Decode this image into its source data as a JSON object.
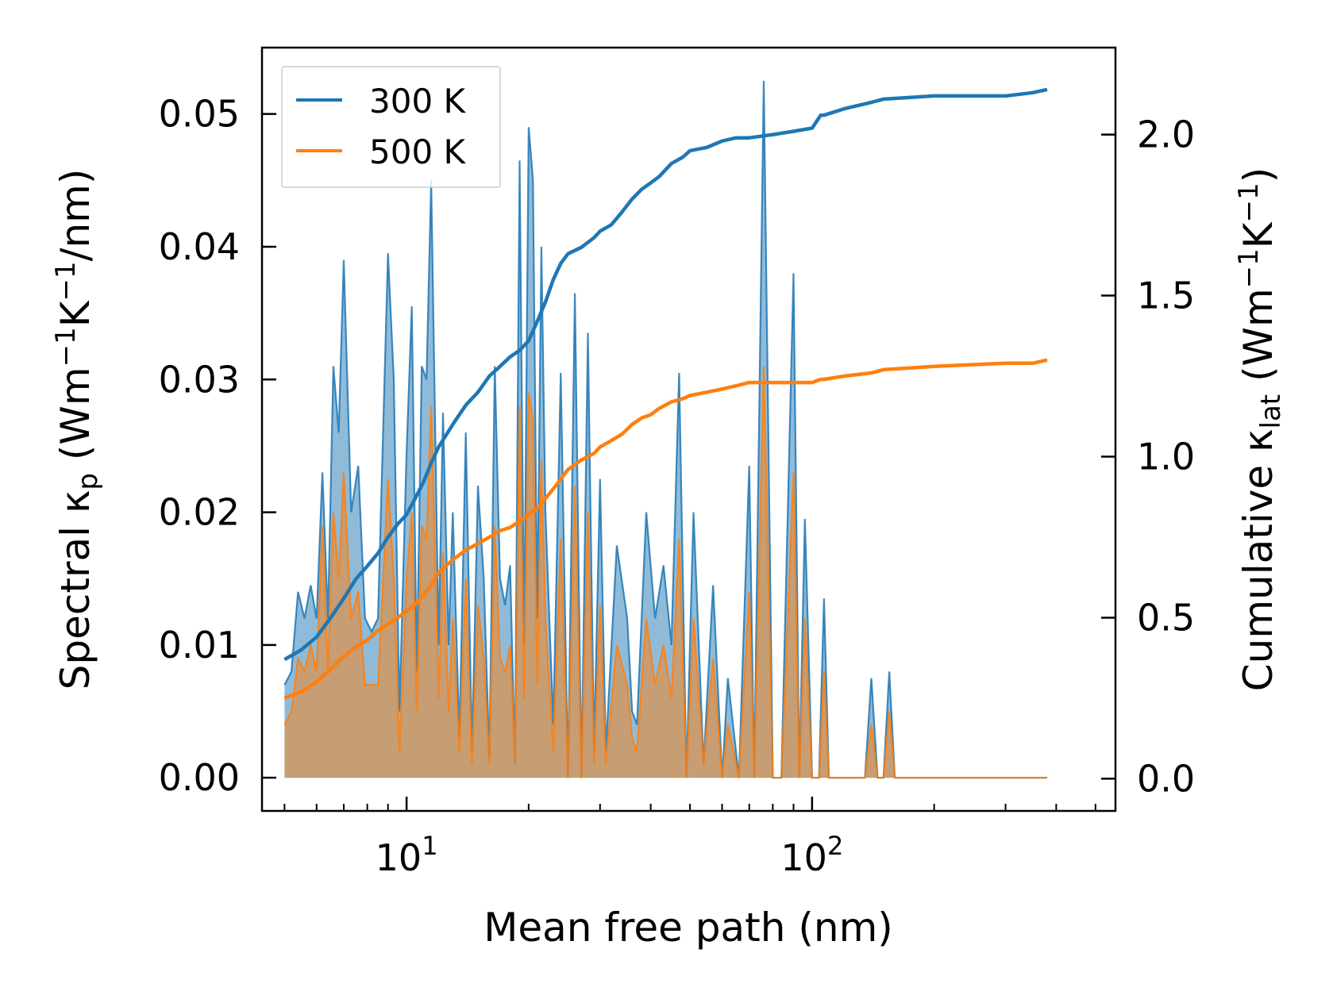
{
  "chart_data": {
    "type": "line",
    "xscale": "log",
    "xlabel": "Mean free path (nm)",
    "ylabel_left": {
      "main": "Spectral κ",
      "sub": "p",
      "units": [
        "(Wm",
        "−1",
        "K",
        "−1",
        "/nm)"
      ]
    },
    "ylabel_right": {
      "main": "Cumulative κ",
      "sub": "lat",
      "units": [
        "(Wm",
        "−1",
        "K",
        "−1",
        ")"
      ]
    },
    "xlim": [
      4.4,
      560
    ],
    "ylim_left": [
      -0.0025,
      0.055
    ],
    "ylim_right": [
      -0.1,
      2.27
    ],
    "x_ticks": [
      {
        "value": 10,
        "base": "10",
        "exp": "1"
      },
      {
        "value": 100,
        "base": "10",
        "exp": "2"
      }
    ],
    "y_ticks_left": [
      {
        "value": 0,
        "label": "0.00"
      },
      {
        "value": 0.01,
        "label": "0.01"
      },
      {
        "value": 0.02,
        "label": "0.02"
      },
      {
        "value": 0.03,
        "label": "0.03"
      },
      {
        "value": 0.04,
        "label": "0.04"
      },
      {
        "value": 0.05,
        "label": "0.05"
      }
    ],
    "y_ticks_right": [
      {
        "value": 0,
        "label": "0.0"
      },
      {
        "value": 0.5,
        "label": "0.5"
      },
      {
        "value": 1.0,
        "label": "1.0"
      },
      {
        "value": 1.5,
        "label": "1.5"
      },
      {
        "value": 2.0,
        "label": "2.0"
      }
    ],
    "legend": {
      "position": "upper-left"
    },
    "series": [
      {
        "name": "300 K",
        "color": "#1f77b4",
        "spectral": {
          "x": [
            5.0,
            5.2,
            5.4,
            5.6,
            5.8,
            6.0,
            6.2,
            6.4,
            6.6,
            6.8,
            7.0,
            7.3,
            7.6,
            7.9,
            8.2,
            8.5,
            9.0,
            9.3,
            9.6,
            10.0,
            10.3,
            10.6,
            10.9,
            11.2,
            11.5,
            12.0,
            12.3,
            12.7,
            13.0,
            13.5,
            14.0,
            14.5,
            15.0,
            15.5,
            16.0,
            16.5,
            17.0,
            17.5,
            18.0,
            18.5,
            19.0,
            19.5,
            20.0,
            20.5,
            21.0,
            21.5,
            22.0,
            23.0,
            24.0,
            25.0,
            26.0,
            27.0,
            28.0,
            29.0,
            30.0,
            31.0,
            33.0,
            35.0,
            36.0,
            37.0,
            39.0,
            41.0,
            43.0,
            45.0,
            47.0,
            49.0,
            51.0,
            54.0,
            57.0,
            60.0,
            62.0,
            66.0,
            70.0,
            72.0,
            76.0,
            80.0,
            84.0,
            90.0,
            93.0,
            96.0,
            100.0,
            104.0,
            107.0,
            110.0,
            120.0,
            135.0,
            140.0,
            145.0,
            150.0,
            155.0,
            160.0,
            180.0,
            195.0,
            200.0,
            250.0,
            300.0,
            320.0,
            330.0,
            340.0,
            360.0,
            370.0,
            380.0
          ],
          "y": [
            0.007,
            0.008,
            0.014,
            0.012,
            0.0145,
            0.012,
            0.023,
            0.012,
            0.031,
            0.026,
            0.039,
            0.02,
            0.0235,
            0.012,
            0.011,
            0.012,
            0.0395,
            0.03,
            0.005,
            0.0245,
            0.0355,
            0.008,
            0.031,
            0.03,
            0.045,
            0.01,
            0.0275,
            0.01,
            0.02,
            0.003,
            0.026,
            0.002,
            0.022,
            0.015,
            0.0015,
            0.031,
            0.015,
            0.013,
            0.016,
            0.001,
            0.0465,
            0.01,
            0.049,
            0.045,
            0.012,
            0.04,
            0.02,
            0.004,
            0.0305,
            0.0,
            0.0365,
            0.0,
            0.0335,
            0.002,
            0.0225,
            0.002,
            0.0175,
            0.012,
            0.005,
            0.004,
            0.02,
            0.012,
            0.016,
            0.01,
            0.0305,
            0.0,
            0.02,
            0.001,
            0.0145,
            0.0,
            0.0075,
            0.0,
            0.0235,
            0.0,
            0.0525,
            0.0,
            0.0,
            0.038,
            0.0,
            0.0195,
            0.0,
            0.0,
            0.0135,
            0.0,
            0.0,
            0.0,
            0.0075,
            0.0,
            0.0,
            0.008,
            0.0,
            0.0,
            0.0,
            0.0,
            0.0,
            0.0,
            0.0,
            0.0,
            0.0,
            0.0,
            0.0,
            0.0
          ]
        },
        "cumulative": {
          "x": [
            5.0,
            5.5,
            6.0,
            6.5,
            7.0,
            7.5,
            8.0,
            8.5,
            9.0,
            9.5,
            10.0,
            10.5,
            11.0,
            11.5,
            12.0,
            13.0,
            14.0,
            15.0,
            16.0,
            17.0,
            18.0,
            19.0,
            20.0,
            21.0,
            22.0,
            23.0,
            24.0,
            25.0,
            27.0,
            29.0,
            30.0,
            32.0,
            34.0,
            36.0,
            38.0,
            40.0,
            42.0,
            45.0,
            48.0,
            50.0,
            55.0,
            60.0,
            65.0,
            70.0,
            80.0,
            90.0,
            100.0,
            105.0,
            107.0,
            120.0,
            140.0,
            150.0,
            200.0,
            300.0,
            350.0,
            380.0
          ],
          "y": [
            0.37,
            0.4,
            0.44,
            0.5,
            0.56,
            0.62,
            0.66,
            0.7,
            0.75,
            0.79,
            0.82,
            0.87,
            0.92,
            0.98,
            1.03,
            1.1,
            1.16,
            1.2,
            1.25,
            1.28,
            1.31,
            1.33,
            1.36,
            1.42,
            1.48,
            1.55,
            1.6,
            1.63,
            1.65,
            1.68,
            1.7,
            1.72,
            1.76,
            1.8,
            1.83,
            1.85,
            1.87,
            1.91,
            1.93,
            1.95,
            1.96,
            1.98,
            1.99,
            1.99,
            2.0,
            2.01,
            2.02,
            2.06,
            2.06,
            2.08,
            2.1,
            2.11,
            2.12,
            2.12,
            2.13,
            2.14
          ]
        }
      },
      {
        "name": "500 K",
        "color": "#ff7f0e",
        "spectral": {
          "x": [
            5.0,
            5.2,
            5.4,
            5.6,
            5.8,
            6.0,
            6.2,
            6.4,
            6.6,
            6.8,
            7.0,
            7.3,
            7.6,
            7.9,
            8.2,
            8.5,
            9.0,
            9.3,
            9.6,
            10.0,
            10.3,
            10.6,
            10.9,
            11.2,
            11.5,
            12.0,
            12.3,
            12.7,
            13.0,
            13.5,
            14.0,
            14.5,
            15.0,
            15.5,
            16.0,
            16.5,
            17.0,
            17.5,
            18.0,
            18.5,
            19.0,
            19.5,
            20.0,
            20.5,
            21.0,
            21.5,
            22.0,
            23.0,
            24.0,
            25.0,
            26.0,
            27.0,
            28.0,
            29.0,
            30.0,
            31.0,
            33.0,
            35.0,
            36.0,
            37.0,
            39.0,
            41.0,
            43.0,
            45.0,
            47.0,
            49.0,
            51.0,
            54.0,
            57.0,
            60.0,
            62.0,
            66.0,
            70.0,
            72.0,
            76.0,
            80.0,
            84.0,
            90.0,
            93.0,
            96.0,
            100.0,
            104.0,
            107.0,
            110.0,
            120.0,
            135.0,
            140.0,
            145.0,
            150.0,
            155.0,
            160.0,
            180.0,
            195.0,
            200.0,
            250.0,
            300.0,
            320.0,
            330.0,
            340.0,
            360.0,
            370.0,
            380.0
          ],
          "y": [
            0.004,
            0.005,
            0.009,
            0.008,
            0.01,
            0.008,
            0.019,
            0.008,
            0.02,
            0.015,
            0.023,
            0.012,
            0.014,
            0.007,
            0.007,
            0.007,
            0.0225,
            0.015,
            0.002,
            0.015,
            0.02,
            0.005,
            0.019,
            0.018,
            0.028,
            0.006,
            0.017,
            0.005,
            0.012,
            0.002,
            0.015,
            0.001,
            0.013,
            0.009,
            0.001,
            0.019,
            0.009,
            0.008,
            0.01,
            0.001,
            0.028,
            0.006,
            0.029,
            0.027,
            0.007,
            0.024,
            0.012,
            0.002,
            0.018,
            0.0,
            0.022,
            0.0,
            0.02,
            0.001,
            0.013,
            0.001,
            0.01,
            0.007,
            0.003,
            0.002,
            0.012,
            0.007,
            0.01,
            0.006,
            0.018,
            0.0,
            0.012,
            0.001,
            0.009,
            0.0,
            0.004,
            0.0,
            0.014,
            0.0,
            0.031,
            0.0,
            0.0,
            0.023,
            0.0,
            0.012,
            0.0,
            0.0,
            0.008,
            0.0,
            0.0,
            0.0,
            0.004,
            0.0,
            0.0,
            0.005,
            0.0,
            0.0,
            0.0,
            0.0,
            0.0,
            0.0,
            0.0,
            0.0,
            0.0,
            0.0,
            0.0,
            0.0
          ]
        },
        "cumulative": {
          "x": [
            5.0,
            5.5,
            6.0,
            6.5,
            7.0,
            7.5,
            8.0,
            8.5,
            9.0,
            9.5,
            10.0,
            10.5,
            11.0,
            11.5,
            12.0,
            13.0,
            14.0,
            15.0,
            16.0,
            17.0,
            18.0,
            19.0,
            20.0,
            21.0,
            22.0,
            23.0,
            24.0,
            25.0,
            27.0,
            29.0,
            30.0,
            32.0,
            34.0,
            36.0,
            38.0,
            40.0,
            42.0,
            45.0,
            48.0,
            50.0,
            55.0,
            60.0,
            65.0,
            70.0,
            80.0,
            90.0,
            100.0,
            105.0,
            107.0,
            120.0,
            140.0,
            150.0,
            200.0,
            300.0,
            350.0,
            380.0
          ],
          "y": [
            0.25,
            0.27,
            0.3,
            0.34,
            0.38,
            0.41,
            0.43,
            0.46,
            0.48,
            0.5,
            0.52,
            0.54,
            0.57,
            0.6,
            0.64,
            0.68,
            0.71,
            0.73,
            0.75,
            0.77,
            0.78,
            0.8,
            0.82,
            0.84,
            0.87,
            0.9,
            0.93,
            0.96,
            0.99,
            1.01,
            1.03,
            1.05,
            1.07,
            1.1,
            1.12,
            1.13,
            1.15,
            1.17,
            1.18,
            1.19,
            1.2,
            1.21,
            1.22,
            1.23,
            1.23,
            1.23,
            1.23,
            1.24,
            1.24,
            1.25,
            1.26,
            1.27,
            1.28,
            1.29,
            1.29,
            1.3
          ]
        }
      }
    ]
  }
}
